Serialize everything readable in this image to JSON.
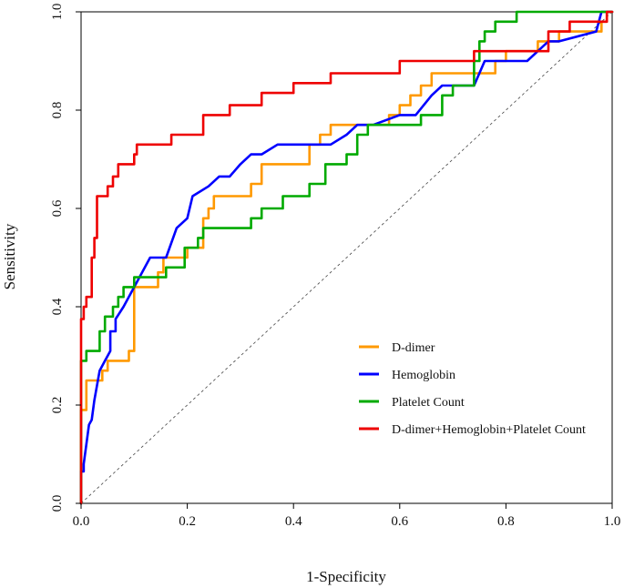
{
  "chart_data": {
    "type": "line",
    "title": "",
    "xlabel": "1-Specificity",
    "ylabel": "Sensitivity",
    "xlim": [
      0,
      1
    ],
    "ylim": [
      0,
      1
    ],
    "xticks": [
      "0.0",
      "0.2",
      "0.4",
      "0.6",
      "0.8",
      "1.0"
    ],
    "yticks": [
      "0.0",
      "0.2",
      "0.4",
      "0.6",
      "0.8",
      "1.0"
    ],
    "reference_line": {
      "name": "chance diagonal",
      "x": [
        0,
        1
      ],
      "y": [
        0,
        1
      ],
      "style": "dashed"
    },
    "legend_position": "bottom-right",
    "series": [
      {
        "name": "D-dimer",
        "color": "#FF9900",
        "x": [
          0,
          0,
          0.01,
          0.01,
          0.04,
          0.04,
          0.05,
          0.05,
          0.09,
          0.09,
          0.1,
          0.1,
          0.145,
          0.145,
          0.155,
          0.155,
          0.2,
          0.2,
          0.23,
          0.23,
          0.24,
          0.24,
          0.25,
          0.25,
          0.32,
          0.32,
          0.34,
          0.34,
          0.43,
          0.43,
          0.45,
          0.45,
          0.47,
          0.47,
          0.58,
          0.58,
          0.6,
          0.6,
          0.62,
          0.62,
          0.64,
          0.64,
          0.66,
          0.66,
          0.7,
          0.7,
          0.78,
          0.78,
          0.8,
          0.8,
          0.82,
          0.82,
          0.86,
          0.86,
          0.9,
          0.9,
          0.94,
          0.94,
          0.98,
          0.98,
          0.99,
          0.99,
          1
        ],
        "y": [
          0,
          0.19,
          0.19,
          0.25,
          0.25,
          0.27,
          0.27,
          0.29,
          0.29,
          0.31,
          0.31,
          0.44,
          0.44,
          0.47,
          0.47,
          0.5,
          0.5,
          0.52,
          0.52,
          0.58,
          0.58,
          0.6,
          0.6,
          0.625,
          0.625,
          0.65,
          0.65,
          0.69,
          0.69,
          0.73,
          0.73,
          0.75,
          0.75,
          0.77,
          0.77,
          0.79,
          0.79,
          0.81,
          0.81,
          0.83,
          0.83,
          0.85,
          0.85,
          0.875,
          0.875,
          0.875,
          0.875,
          0.9,
          0.9,
          0.92,
          0.92,
          0.92,
          0.92,
          0.94,
          0.94,
          0.96,
          0.96,
          0.96,
          0.96,
          0.98,
          0.98,
          1,
          1
        ]
      },
      {
        "name": "Hemoglobin",
        "color": "#0000FF",
        "x": [
          0,
          0,
          0.005,
          0.005,
          0.01,
          0.015,
          0.02,
          0.025,
          0.03,
          0.035,
          0.045,
          0.055,
          0.055,
          0.065,
          0.065,
          0.08,
          0.08,
          0.1,
          0.13,
          0.16,
          0.18,
          0.2,
          0.21,
          0.24,
          0.26,
          0.28,
          0.3,
          0.32,
          0.34,
          0.37,
          0.47,
          0.5,
          0.52,
          0.55,
          0.6,
          0.63,
          0.66,
          0.68,
          0.74,
          0.76,
          0.84,
          0.86,
          0.88,
          0.9,
          0.97,
          0.98,
          1
        ],
        "y": [
          0,
          0.065,
          0.065,
          0.08,
          0.12,
          0.16,
          0.17,
          0.21,
          0.24,
          0.27,
          0.29,
          0.31,
          0.35,
          0.35,
          0.375,
          0.4,
          0.4,
          0.44,
          0.5,
          0.5,
          0.56,
          0.58,
          0.625,
          0.645,
          0.665,
          0.665,
          0.69,
          0.71,
          0.71,
          0.73,
          0.73,
          0.75,
          0.77,
          0.77,
          0.79,
          0.79,
          0.83,
          0.85,
          0.85,
          0.9,
          0.9,
          0.92,
          0.94,
          0.94,
          0.96,
          1,
          1
        ]
      },
      {
        "name": "Platelet Count",
        "color": "#00AA00",
        "x": [
          0,
          0,
          0.01,
          0.01,
          0.035,
          0.035,
          0.045,
          0.045,
          0.06,
          0.06,
          0.07,
          0.07,
          0.08,
          0.08,
          0.1,
          0.1,
          0.16,
          0.16,
          0.195,
          0.195,
          0.22,
          0.22,
          0.23,
          0.23,
          0.32,
          0.32,
          0.34,
          0.34,
          0.38,
          0.38,
          0.43,
          0.43,
          0.46,
          0.46,
          0.5,
          0.5,
          0.52,
          0.52,
          0.54,
          0.54,
          0.64,
          0.64,
          0.68,
          0.68,
          0.7,
          0.7,
          0.74,
          0.74,
          0.75,
          0.75,
          0.76,
          0.76,
          0.78,
          0.78,
          0.79,
          0.79,
          0.82,
          0.82,
          1
        ],
        "y": [
          0,
          0.29,
          0.29,
          0.31,
          0.31,
          0.35,
          0.35,
          0.38,
          0.38,
          0.4,
          0.4,
          0.42,
          0.42,
          0.44,
          0.44,
          0.46,
          0.46,
          0.48,
          0.48,
          0.52,
          0.52,
          0.54,
          0.54,
          0.56,
          0.56,
          0.58,
          0.58,
          0.6,
          0.6,
          0.625,
          0.625,
          0.65,
          0.65,
          0.69,
          0.69,
          0.71,
          0.71,
          0.75,
          0.75,
          0.77,
          0.77,
          0.79,
          0.79,
          0.83,
          0.83,
          0.85,
          0.85,
          0.9,
          0.9,
          0.94,
          0.94,
          0.96,
          0.96,
          0.98,
          0.98,
          0.98,
          0.98,
          1,
          1
        ]
      },
      {
        "name": "D-dimer+Hemoglobin+Platelet Count",
        "color": "#EE0000",
        "x": [
          0,
          0,
          0.005,
          0.005,
          0.01,
          0.01,
          0.02,
          0.02,
          0.025,
          0.025,
          0.03,
          0.03,
          0.04,
          0.04,
          0.05,
          0.05,
          0.06,
          0.06,
          0.07,
          0.07,
          0.08,
          0.08,
          0.1,
          0.1,
          0.105,
          0.105,
          0.17,
          0.17,
          0.23,
          0.23,
          0.28,
          0.28,
          0.34,
          0.34,
          0.4,
          0.4,
          0.47,
          0.47,
          0.6,
          0.6,
          0.74,
          0.74,
          0.88,
          0.88,
          0.92,
          0.92,
          0.99,
          0.99,
          1
        ],
        "y": [
          0,
          0.375,
          0.375,
          0.4,
          0.4,
          0.42,
          0.42,
          0.5,
          0.5,
          0.54,
          0.54,
          0.625,
          0.625,
          0.625,
          0.625,
          0.645,
          0.645,
          0.665,
          0.665,
          0.69,
          0.69,
          0.69,
          0.69,
          0.71,
          0.71,
          0.73,
          0.73,
          0.75,
          0.75,
          0.79,
          0.79,
          0.81,
          0.81,
          0.835,
          0.835,
          0.855,
          0.855,
          0.875,
          0.875,
          0.9,
          0.9,
          0.92,
          0.92,
          0.96,
          0.96,
          0.98,
          0.98,
          1,
          1
        ]
      }
    ]
  }
}
